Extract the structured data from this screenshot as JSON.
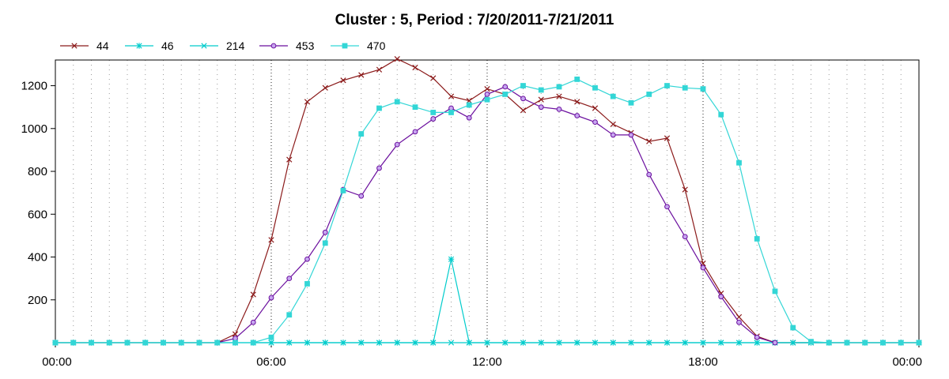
{
  "chart_data": {
    "type": "line",
    "title": "Cluster : 5, Period : 7/20/2011-7/21/2011",
    "xlabel": "",
    "ylabel": "",
    "x_unit": "hours",
    "xlim": [
      0,
      24
    ],
    "ylim": [
      0,
      1320
    ],
    "x_ticks": [
      {
        "value": 0,
        "label": "00:00"
      },
      {
        "value": 6,
        "label": "06:00"
      },
      {
        "value": 12,
        "label": "12:00"
      },
      {
        "value": 18,
        "label": "18:00"
      },
      {
        "value": 24,
        "label": "00:00"
      }
    ],
    "y_ticks": [
      {
        "value": 200,
        "label": "200"
      },
      {
        "value": 400,
        "label": "400"
      },
      {
        "value": 600,
        "label": "600"
      },
      {
        "value": 800,
        "label": "800"
      },
      {
        "value": 1000,
        "label": "1000"
      },
      {
        "value": 1200,
        "label": "1200"
      }
    ],
    "grid": "dotted vertical lines every 30 minutes, bold at 6-hour marks",
    "legend_position": "top-left",
    "series": [
      {
        "name": "44",
        "color": "#8b1a1a",
        "marker": "x",
        "points": [
          [
            0,
            0
          ],
          [
            0.5,
            0
          ],
          [
            1,
            0
          ],
          [
            1.5,
            0
          ],
          [
            2,
            0
          ],
          [
            2.5,
            0
          ],
          [
            3,
            0
          ],
          [
            3.5,
            0
          ],
          [
            4,
            0
          ],
          [
            4.5,
            0
          ],
          [
            5,
            40
          ],
          [
            5.5,
            225
          ],
          [
            6,
            480
          ],
          [
            6.5,
            855
          ],
          [
            7,
            1125
          ],
          [
            7.5,
            1190
          ],
          [
            8,
            1225
          ],
          [
            8.5,
            1250
          ],
          [
            9,
            1275
          ],
          [
            9.5,
            1325
          ],
          [
            10,
            1285
          ],
          [
            10.5,
            1235
          ],
          [
            11,
            1150
          ],
          [
            11.5,
            1130
          ],
          [
            12,
            1185
          ],
          [
            12.5,
            1160
          ],
          [
            13,
            1085
          ],
          [
            13.5,
            1135
          ],
          [
            14,
            1150
          ],
          [
            14.5,
            1125
          ],
          [
            15,
            1095
          ],
          [
            15.5,
            1020
          ],
          [
            16,
            980
          ],
          [
            16.5,
            940
          ],
          [
            17,
            955
          ],
          [
            17.5,
            715
          ],
          [
            18,
            370
          ],
          [
            18.5,
            230
          ],
          [
            19,
            120
          ],
          [
            19.5,
            30
          ],
          [
            20,
            0
          ],
          [
            20.5,
            0
          ],
          [
            21,
            0
          ],
          [
            21.5,
            0
          ],
          [
            22,
            0
          ],
          [
            22.5,
            0
          ],
          [
            23,
            0
          ],
          [
            23.5,
            0
          ],
          [
            24,
            0
          ]
        ]
      },
      {
        "name": "46",
        "color": "#00cccc",
        "marker": "asterisk",
        "points": [
          [
            0,
            0
          ],
          [
            0.5,
            0
          ],
          [
            1,
            0
          ],
          [
            1.5,
            0
          ],
          [
            2,
            0
          ],
          [
            2.5,
            0
          ],
          [
            3,
            0
          ],
          [
            3.5,
            0
          ],
          [
            4,
            0
          ],
          [
            4.5,
            0
          ],
          [
            5,
            0
          ],
          [
            5.5,
            0
          ],
          [
            6,
            0
          ],
          [
            6.5,
            0
          ],
          [
            7,
            0
          ],
          [
            7.5,
            0
          ],
          [
            8,
            0
          ],
          [
            8.5,
            0
          ],
          [
            9,
            0
          ],
          [
            9.5,
            0
          ],
          [
            10,
            0
          ],
          [
            10.5,
            0
          ],
          [
            11,
            390
          ],
          [
            11.5,
            0
          ],
          [
            12,
            0
          ],
          [
            12.5,
            0
          ],
          [
            13,
            0
          ],
          [
            13.5,
            0
          ],
          [
            14,
            0
          ],
          [
            14.5,
            0
          ],
          [
            15,
            0
          ],
          [
            15.5,
            0
          ],
          [
            16,
            0
          ],
          [
            16.5,
            0
          ],
          [
            17,
            0
          ],
          [
            17.5,
            0
          ],
          [
            18,
            0
          ],
          [
            18.5,
            0
          ],
          [
            19,
            0
          ],
          [
            19.5,
            0
          ],
          [
            20,
            0
          ],
          [
            20.5,
            0
          ],
          [
            21,
            0
          ],
          [
            21.5,
            0
          ],
          [
            22,
            0
          ],
          [
            22.5,
            0
          ],
          [
            23,
            0
          ],
          [
            23.5,
            0
          ],
          [
            24,
            0
          ]
        ]
      },
      {
        "name": "214",
        "color": "#00cccc",
        "marker": "x",
        "points": [
          [
            0,
            0
          ],
          [
            0.5,
            0
          ],
          [
            1,
            0
          ],
          [
            1.5,
            0
          ],
          [
            2,
            0
          ],
          [
            2.5,
            0
          ],
          [
            3,
            0
          ],
          [
            3.5,
            0
          ],
          [
            4,
            0
          ],
          [
            4.5,
            0
          ],
          [
            5,
            0
          ],
          [
            5.5,
            0
          ],
          [
            6,
            0
          ],
          [
            6.5,
            0
          ],
          [
            7,
            0
          ],
          [
            7.5,
            0
          ],
          [
            8,
            0
          ],
          [
            8.5,
            0
          ],
          [
            9,
            0
          ],
          [
            9.5,
            0
          ],
          [
            10,
            0
          ],
          [
            10.5,
            0
          ],
          [
            11,
            0
          ],
          [
            11.5,
            0
          ],
          [
            12,
            0
          ],
          [
            12.5,
            0
          ],
          [
            13,
            0
          ],
          [
            13.5,
            0
          ],
          [
            14,
            0
          ],
          [
            14.5,
            0
          ],
          [
            15,
            0
          ],
          [
            15.5,
            0
          ],
          [
            16,
            0
          ],
          [
            16.5,
            0
          ],
          [
            17,
            0
          ],
          [
            17.5,
            0
          ],
          [
            18,
            0
          ],
          [
            18.5,
            0
          ],
          [
            19,
            0
          ],
          [
            19.5,
            0
          ],
          [
            20,
            0
          ],
          [
            20.5,
            0
          ],
          [
            21,
            0
          ],
          [
            21.5,
            0
          ],
          [
            22,
            0
          ],
          [
            22.5,
            0
          ],
          [
            23,
            0
          ],
          [
            23.5,
            0
          ],
          [
            24,
            0
          ]
        ]
      },
      {
        "name": "453",
        "color": "#6b0f9e",
        "marker": "circle",
        "points": [
          [
            4.5,
            0
          ],
          [
            5,
            20
          ],
          [
            5.5,
            95
          ],
          [
            6,
            210
          ],
          [
            6.5,
            300
          ],
          [
            7,
            390
          ],
          [
            7.5,
            515
          ],
          [
            8,
            715
          ],
          [
            8.5,
            685
          ],
          [
            9,
            815
          ],
          [
            9.5,
            925
          ],
          [
            10,
            985
          ],
          [
            10.5,
            1045
          ],
          [
            11,
            1095
          ],
          [
            11.5,
            1050
          ],
          [
            12,
            1160
          ],
          [
            12.5,
            1195
          ],
          [
            13,
            1140
          ],
          [
            13.5,
            1100
          ],
          [
            14,
            1090
          ],
          [
            14.5,
            1060
          ],
          [
            15,
            1030
          ],
          [
            15.5,
            970
          ],
          [
            16,
            970
          ],
          [
            16.5,
            785
          ],
          [
            17,
            635
          ],
          [
            17.5,
            495
          ],
          [
            18,
            350
          ],
          [
            18.5,
            215
          ],
          [
            19,
            95
          ],
          [
            19.5,
            25
          ],
          [
            20,
            0
          ]
        ]
      },
      {
        "name": "470",
        "color": "#33d6d6",
        "marker": "square",
        "points": [
          [
            0,
            0
          ],
          [
            0.5,
            0
          ],
          [
            1,
            0
          ],
          [
            1.5,
            0
          ],
          [
            2,
            0
          ],
          [
            2.5,
            0
          ],
          [
            3,
            0
          ],
          [
            3.5,
            0
          ],
          [
            4,
            0
          ],
          [
            4.5,
            0
          ],
          [
            5,
            0
          ],
          [
            5.5,
            0
          ],
          [
            6,
            25
          ],
          [
            6.5,
            130
          ],
          [
            7,
            275
          ],
          [
            7.5,
            465
          ],
          [
            8,
            710
          ],
          [
            8.5,
            975
          ],
          [
            9,
            1095
          ],
          [
            9.5,
            1125
          ],
          [
            10,
            1100
          ],
          [
            10.5,
            1075
          ],
          [
            11,
            1075
          ],
          [
            11.5,
            1110
          ],
          [
            12,
            1135
          ],
          [
            12.5,
            1160
          ],
          [
            13,
            1200
          ],
          [
            13.5,
            1180
          ],
          [
            14,
            1195
          ],
          [
            14.5,
            1230
          ],
          [
            15,
            1190
          ],
          [
            15.5,
            1150
          ],
          [
            16,
            1120
          ],
          [
            16.5,
            1160
          ],
          [
            17,
            1200
          ],
          [
            17.5,
            1190
          ],
          [
            18,
            1185
          ],
          [
            18.5,
            1065
          ],
          [
            19,
            840
          ],
          [
            19.5,
            485
          ],
          [
            20,
            240
          ],
          [
            20.5,
            70
          ],
          [
            21,
            5
          ],
          [
            21.5,
            0
          ],
          [
            22,
            0
          ],
          [
            22.5,
            0
          ],
          [
            23,
            0
          ],
          [
            23.5,
            0
          ],
          [
            24,
            0
          ]
        ]
      }
    ]
  }
}
